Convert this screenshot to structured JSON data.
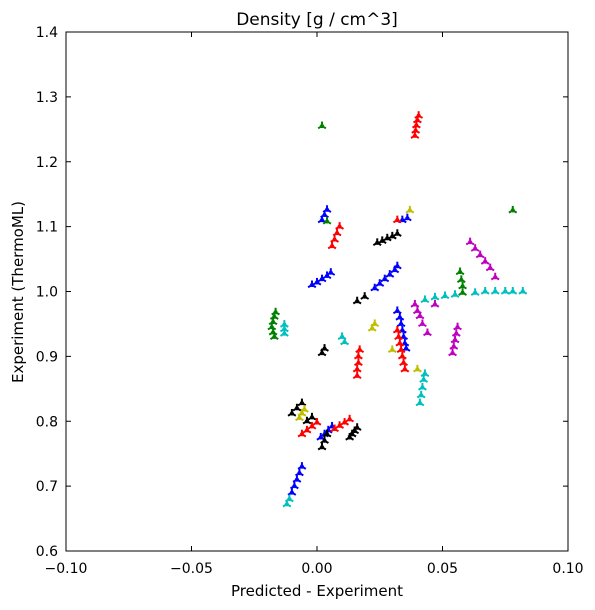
{
  "chart_data": {
    "type": "scatter",
    "title": "Density [g / cm^3]",
    "xlabel": "Predicted - Experiment",
    "ylabel": "Experiment (ThermoML)",
    "xlim": [
      -0.1,
      0.1
    ],
    "ylim": [
      0.6,
      1.4
    ],
    "xticks": [
      -0.1,
      -0.05,
      0.0,
      0.05,
      0.1
    ],
    "xtick_labels": [
      "−0.10",
      "−0.05",
      "0.00",
      "0.05",
      "0.10"
    ],
    "yticks": [
      0.6,
      0.7,
      0.8,
      0.9,
      1.0,
      1.1,
      1.2,
      1.3,
      1.4
    ],
    "ytick_labels": [
      "0.6",
      "0.7",
      "0.8",
      "0.9",
      "1.0",
      "1.1",
      "1.2",
      "1.3",
      "1.4"
    ],
    "grid": false,
    "marker": "tri-star",
    "series": [
      {
        "color": "#0000ff",
        "points": [
          [
            -0.01,
            0.69
          ],
          [
            -0.009,
            0.7
          ],
          [
            -0.008,
            0.71
          ],
          [
            -0.007,
            0.72
          ],
          [
            -0.006,
            0.73
          ],
          [
            0.0015,
            0.775
          ],
          [
            0.003,
            0.78
          ],
          [
            0.0045,
            0.786
          ],
          [
            0.006,
            0.792
          ],
          [
            -0.002,
            1.01
          ],
          [
            0.0,
            1.014
          ],
          [
            0.002,
            1.019
          ],
          [
            0.004,
            1.024
          ],
          [
            0.0055,
            1.029
          ],
          [
            0.002,
            1.11
          ],
          [
            0.003,
            1.118
          ],
          [
            0.004,
            1.126
          ],
          [
            0.023,
            1.005
          ],
          [
            0.025,
            1.012
          ],
          [
            0.027,
            1.019
          ],
          [
            0.029,
            1.026
          ],
          [
            0.031,
            1.033
          ],
          [
            0.032,
            1.039
          ],
          [
            0.032,
            0.97
          ],
          [
            0.033,
            0.96
          ],
          [
            0.0335,
            0.95
          ],
          [
            0.034,
            0.94
          ],
          [
            0.0345,
            0.93
          ],
          [
            0.035,
            0.92
          ],
          [
            0.0355,
            0.912
          ],
          [
            0.034,
            1.11
          ],
          [
            0.036,
            1.113
          ]
        ]
      },
      {
        "color": "#ff0000",
        "points": [
          [
            -0.006,
            0.78
          ],
          [
            -0.004,
            0.786
          ],
          [
            -0.002,
            0.792
          ],
          [
            0.0,
            0.798
          ],
          [
            0.007,
            0.788
          ],
          [
            0.009,
            0.793
          ],
          [
            0.011,
            0.798
          ],
          [
            0.013,
            0.803
          ],
          [
            0.006,
            1.07
          ],
          [
            0.007,
            1.08
          ],
          [
            0.008,
            1.09
          ],
          [
            0.009,
            1.1
          ],
          [
            0.016,
            0.87
          ],
          [
            0.016,
            0.88
          ],
          [
            0.0165,
            0.89
          ],
          [
            0.0165,
            0.9
          ],
          [
            0.017,
            0.91
          ],
          [
            0.032,
            0.94
          ],
          [
            0.0325,
            0.93
          ],
          [
            0.033,
            0.92
          ],
          [
            0.0335,
            0.91
          ],
          [
            0.034,
            0.9
          ],
          [
            0.0345,
            0.89
          ],
          [
            0.035,
            0.88
          ],
          [
            0.039,
            1.24
          ],
          [
            0.0393,
            1.248
          ],
          [
            0.0396,
            1.256
          ],
          [
            0.04,
            1.264
          ],
          [
            0.0405,
            1.271
          ],
          [
            0.032,
            1.11
          ]
        ]
      },
      {
        "color": "#000000",
        "points": [
          [
            -0.01,
            0.812
          ],
          [
            -0.008,
            0.82
          ],
          [
            -0.006,
            0.828
          ],
          [
            -0.004,
            0.8
          ],
          [
            -0.002,
            0.806
          ],
          [
            0.002,
            0.76
          ],
          [
            0.003,
            0.77
          ],
          [
            0.004,
            0.78
          ],
          [
            0.002,
            0.905
          ],
          [
            0.003,
            0.912
          ],
          [
            0.013,
            0.775
          ],
          [
            0.014,
            0.78
          ],
          [
            0.015,
            0.785
          ],
          [
            0.016,
            0.79
          ],
          [
            0.016,
            0.985
          ],
          [
            0.019,
            0.992
          ],
          [
            0.024,
            1.075
          ],
          [
            0.026,
            1.078
          ],
          [
            0.028,
            1.082
          ],
          [
            0.03,
            1.085
          ],
          [
            0.032,
            1.089
          ]
        ]
      },
      {
        "color": "#bfbf00",
        "points": [
          [
            -0.007,
            0.805
          ],
          [
            -0.006,
            0.812
          ],
          [
            -0.005,
            0.818
          ],
          [
            0.022,
            0.943
          ],
          [
            0.023,
            0.95
          ],
          [
            0.03,
            0.91
          ],
          [
            0.037,
            1.125
          ],
          [
            0.04,
            0.88
          ]
        ]
      },
      {
        "color": "#00bfbf",
        "points": [
          [
            -0.012,
            0.672
          ],
          [
            -0.011,
            0.68
          ],
          [
            -0.013,
            0.935
          ],
          [
            -0.013,
            0.942
          ],
          [
            -0.013,
            0.949
          ],
          [
            0.01,
            0.93
          ],
          [
            0.011,
            0.922
          ],
          [
            0.041,
            0.828
          ],
          [
            0.0415,
            0.84
          ],
          [
            0.042,
            0.852
          ],
          [
            0.0425,
            0.864
          ],
          [
            0.043,
            0.873
          ],
          [
            0.043,
            0.987
          ],
          [
            0.047,
            0.991
          ],
          [
            0.051,
            0.993
          ],
          [
            0.055,
            0.995
          ],
          [
            0.063,
            0.998
          ],
          [
            0.067,
            1.0
          ],
          [
            0.071,
            1.0
          ],
          [
            0.075,
            1.0
          ],
          [
            0.078,
            1.0
          ],
          [
            0.082,
            1.0
          ]
        ]
      },
      {
        "color": "#bf00bf",
        "points": [
          [
            0.039,
            0.98
          ],
          [
            0.04,
            0.97
          ],
          [
            0.041,
            0.962
          ],
          [
            0.042,
            0.95
          ],
          [
            0.044,
            0.936
          ],
          [
            0.047,
            0.98
          ],
          [
            0.054,
            0.905
          ],
          [
            0.0545,
            0.915
          ],
          [
            0.055,
            0.925
          ],
          [
            0.0555,
            0.935
          ],
          [
            0.056,
            0.945
          ],
          [
            0.061,
            1.076
          ],
          [
            0.063,
            1.066
          ],
          [
            0.065,
            1.056
          ],
          [
            0.067,
            1.046
          ],
          [
            0.069,
            1.036
          ],
          [
            0.071,
            1.022
          ]
        ]
      },
      {
        "color": "#008000",
        "points": [
          [
            -0.017,
            0.93
          ],
          [
            -0.0175,
            0.937
          ],
          [
            -0.018,
            0.945
          ],
          [
            -0.0175,
            0.953
          ],
          [
            -0.017,
            0.961
          ],
          [
            -0.0165,
            0.968
          ],
          [
            0.002,
            1.255
          ],
          [
            0.004,
            1.108
          ],
          [
            0.057,
            1.03
          ],
          [
            0.0575,
            1.018
          ],
          [
            0.058,
            1.008
          ],
          [
            0.058,
            0.998
          ],
          [
            0.078,
            1.125
          ]
        ]
      }
    ]
  }
}
